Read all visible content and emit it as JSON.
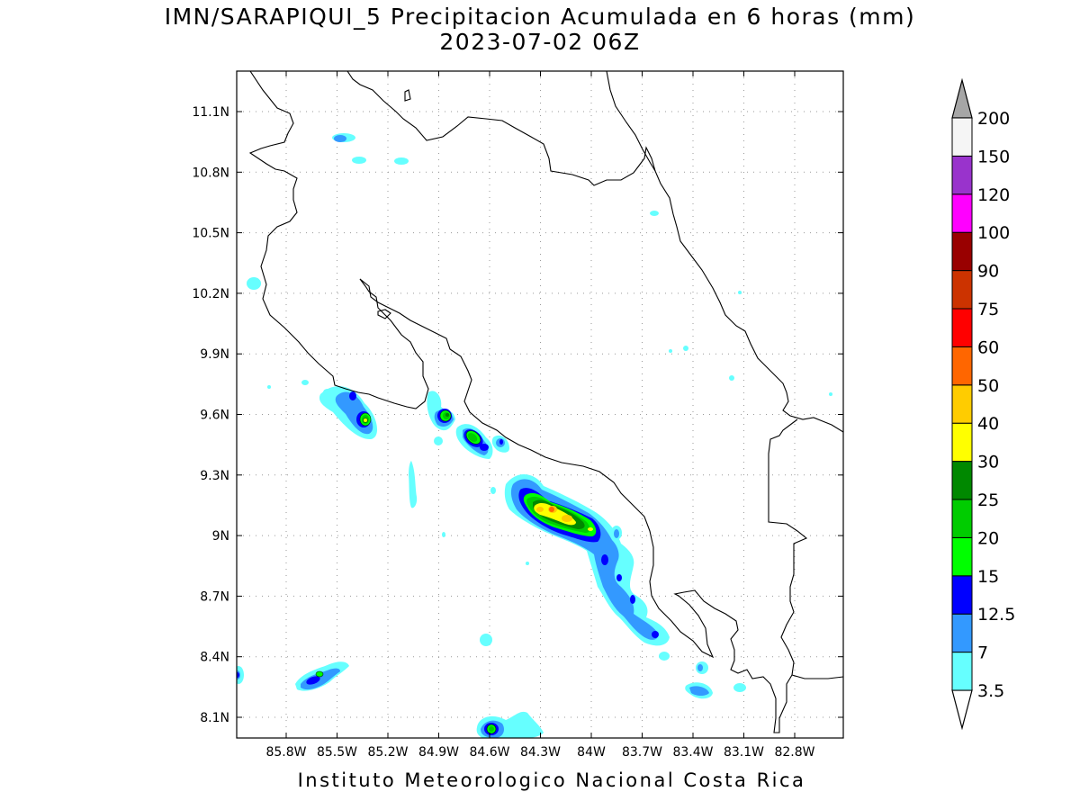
{
  "header": {
    "title_line1": "IMN/SARAPIQUI_5 Precipitacion Acumulada en 6 horas (mm)",
    "title_line2": "2023-07-02 06Z"
  },
  "footer": {
    "credit": "Instituto Meteorologico Nacional Costa Rica"
  },
  "map": {
    "lon_range": [
      -86.06,
      -83.06
    ],
    "lat_range": [
      8.0,
      11.3
    ],
    "lat_ticks": [
      {
        "value": 11.1,
        "label": "11.1N"
      },
      {
        "value": 10.8,
        "label": "10.8N"
      },
      {
        "value": 10.5,
        "label": "10.5N"
      },
      {
        "value": 10.2,
        "label": "10.2N"
      },
      {
        "value": 9.9,
        "label": "9.9N"
      },
      {
        "value": 9.6,
        "label": "9.6N"
      },
      {
        "value": 9.3,
        "label": "9.3N"
      },
      {
        "value": 9.0,
        "label": "9N"
      },
      {
        "value": 8.7,
        "label": "8.7N"
      },
      {
        "value": 8.4,
        "label": "8.4N"
      },
      {
        "value": 8.1,
        "label": "8.1N"
      }
    ],
    "lon_ticks": [
      {
        "value": -85.8,
        "label": "85.8W"
      },
      {
        "value": -85.5,
        "label": "85.5W"
      },
      {
        "value": -85.2,
        "label": "85.2W"
      },
      {
        "value": -84.9,
        "label": "84.9W"
      },
      {
        "value": -84.6,
        "label": "84.6W"
      },
      {
        "value": -84.3,
        "label": "84.3W"
      },
      {
        "value": -84.0,
        "label": "84W"
      },
      {
        "value": -83.7,
        "label": "83.7W"
      },
      {
        "value": -83.4,
        "label": "83.4W"
      },
      {
        "value": -83.1,
        "label": "83.1W"
      },
      {
        "value": -82.8,
        "label": "82.8W"
      }
    ],
    "grid": true
  },
  "colorbar": {
    "levels": [
      "3.5",
      "7",
      "12.5",
      "15",
      "20",
      "25",
      "30",
      "40",
      "50",
      "60",
      "75",
      "90",
      "100",
      "120",
      "150",
      "200"
    ],
    "colors": [
      "#66ffff",
      "#3399ff",
      "#0000ff",
      "#00ff00",
      "#00cc00",
      "#008800",
      "#ffff00",
      "#ffcc00",
      "#ff6600",
      "#ff0000",
      "#cc3300",
      "#990000",
      "#ff00ff",
      "#9933cc",
      "#f5f5f5"
    ],
    "over_color": "#a6a6a6",
    "under_color": "#ffffff"
  },
  "precip_cells": [
    {
      "lon": -84.18,
      "lat": 9.13,
      "rx": 0.2,
      "ry": 0.07,
      "rot": 25,
      "level": 7
    },
    {
      "lon": -84.02,
      "lat": 9.05,
      "rx": 0.12,
      "ry": 0.05,
      "rot": 25,
      "level": 6
    },
    {
      "lon": -84.32,
      "lat": 9.24,
      "rx": 0.06,
      "ry": 0.06,
      "rot": 0,
      "level": 5
    },
    {
      "lon": -85.24,
      "lat": 9.56,
      "rx": 0.04,
      "ry": 0.04,
      "rot": 0,
      "level": 6
    },
    {
      "lon": -84.83,
      "lat": 9.6,
      "rx": 0.05,
      "ry": 0.05,
      "rot": 30,
      "level": 5
    },
    {
      "lon": -84.65,
      "lat": 9.48,
      "rx": 0.07,
      "ry": 0.05,
      "rot": 40,
      "level": 5
    },
    {
      "lon": -84.52,
      "lat": 8.05,
      "rx": 0.05,
      "ry": 0.04,
      "rot": 0,
      "level": 5
    },
    {
      "lon": -85.5,
      "lat": 8.3,
      "rx": 0.05,
      "ry": 0.03,
      "rot": -20,
      "level": 4
    },
    {
      "lon": -85.32,
      "lat": 9.7,
      "rx": 0.05,
      "ry": 0.05,
      "rot": 0,
      "level": 3
    },
    {
      "lon": -84.55,
      "lat": 9.46,
      "rx": 0.03,
      "ry": 0.03,
      "rot": 0,
      "level": 3
    },
    {
      "lon": -83.88,
      "lat": 8.86,
      "rx": 0.05,
      "ry": 0.08,
      "rot": 20,
      "level": 3
    },
    {
      "lon": -83.75,
      "lat": 8.66,
      "rx": 0.05,
      "ry": 0.06,
      "rot": 20,
      "level": 3
    },
    {
      "lon": -83.6,
      "lat": 8.5,
      "rx": 0.06,
      "ry": 0.05,
      "rot": 30,
      "level": 3
    }
  ]
}
